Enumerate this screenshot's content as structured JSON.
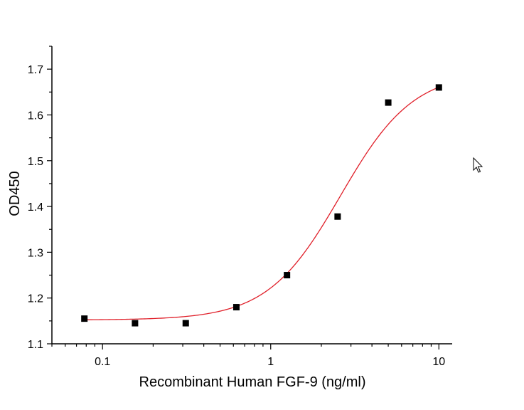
{
  "chart_data": {
    "type": "scatter",
    "title": "",
    "xlabel": "Recombinant Human FGF-9 (ng/ml)",
    "ylabel": "OD450",
    "x_scale": "log",
    "xlim": [
      0.05,
      12
    ],
    "ylim": [
      1.1,
      1.75
    ],
    "x_ticks": [
      0.1,
      1,
      10
    ],
    "x_tick_labels": [
      "0.1",
      "1",
      "10"
    ],
    "y_ticks": [
      1.1,
      1.2,
      1.3,
      1.4,
      1.5,
      1.6,
      1.7
    ],
    "y_tick_labels": [
      "1.1",
      "1.2",
      "1.3",
      "1.4",
      "1.5",
      "1.6",
      "1.7"
    ],
    "grid": false,
    "series": [
      {
        "type": "scatter",
        "x": [
          0.078,
          0.156,
          0.3125,
          0.625,
          1.25,
          2.5,
          5,
          10
        ],
        "y": [
          1.155,
          1.145,
          1.145,
          1.18,
          1.25,
          1.378,
          1.627,
          1.66
        ],
        "color": "#000000",
        "marker": "square"
      },
      {
        "type": "fit",
        "model": "4PL",
        "params": {
          "bottom": 1.152,
          "top": 1.695,
          "ec50": 2.6,
          "hill": 2.0
        },
        "x_range": [
          0.078,
          10
        ],
        "color": "#e0202a"
      }
    ]
  },
  "overlay": {
    "cursor_icon": "mouse-pointer-icon"
  }
}
